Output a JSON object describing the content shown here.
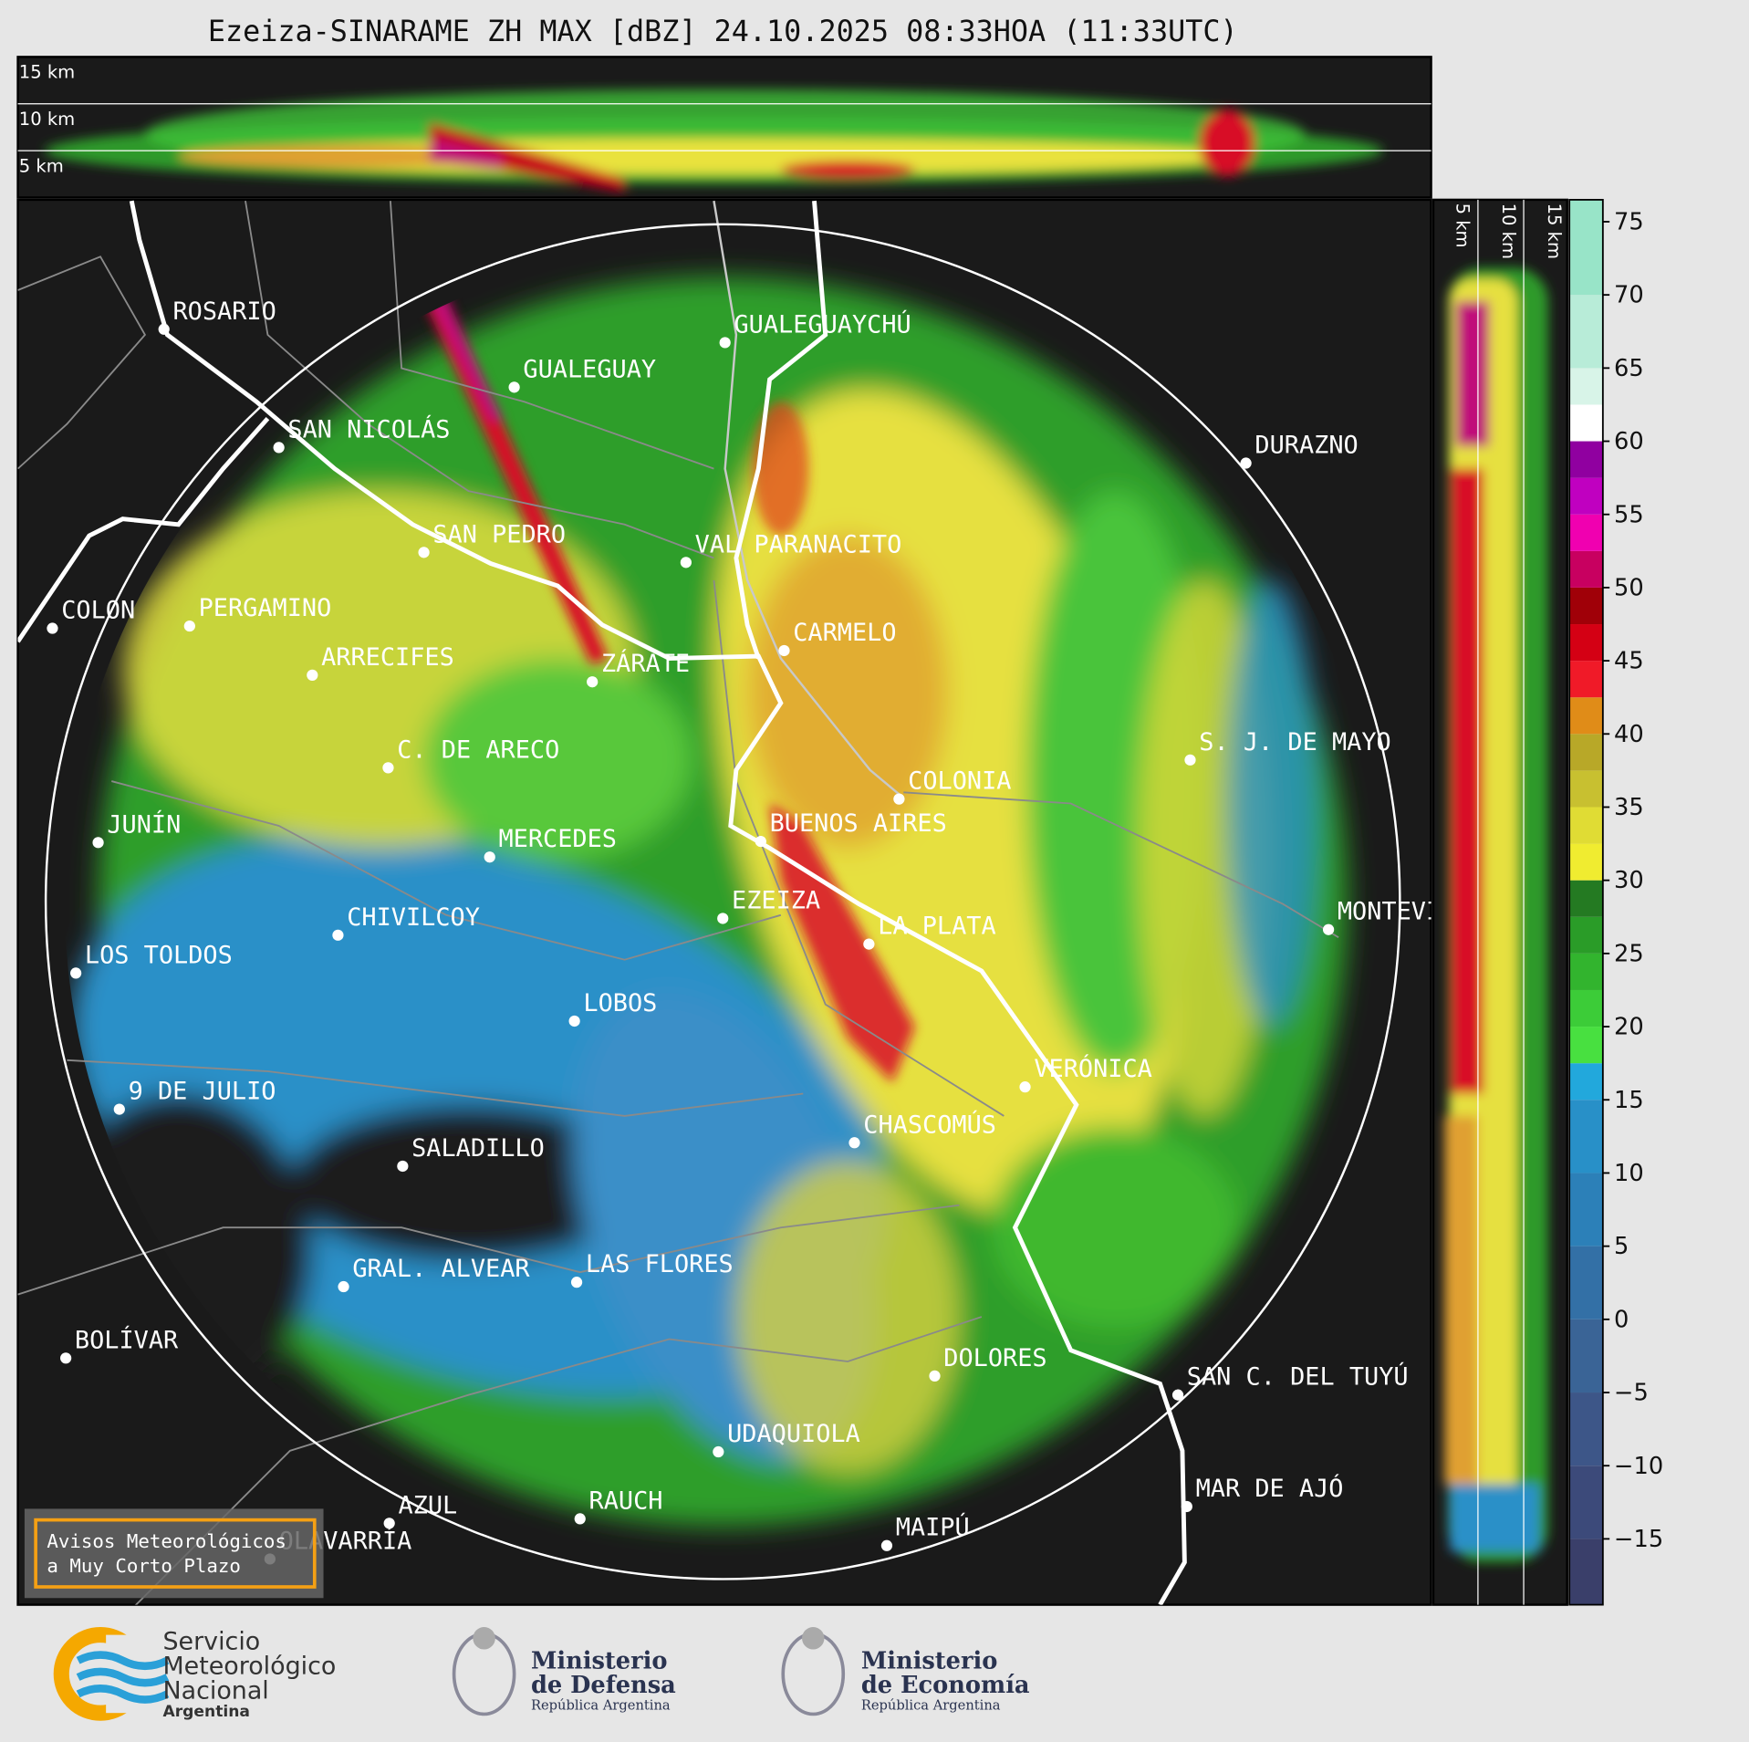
{
  "title": "Ezeiza-SINARAME ZH MAX [dBZ] 24.10.2025 08:33HOA (11:33UTC)",
  "height_panel": {
    "labels": [
      "15 km",
      "10 km",
      "5 km"
    ]
  },
  "side_panel": {
    "labels": [
      "5 km",
      "10 km",
      "15 km"
    ]
  },
  "cities": [
    "ROSARIO",
    "GUALEGUAYCHÚ",
    "GUALEGUAY",
    "SAN NICOLÁS",
    "DURAZNO",
    "SAN PEDRO",
    "VAL PARANACITO",
    "COLON",
    "PERGAMINO",
    "CARMELO",
    "ARRECIFES",
    "ZÁRATE",
    "S. J. DE MAYO",
    "C. DE ARECO",
    "COLONIA",
    "BUENOS AIRES",
    "JUNÍN",
    "MERCEDES",
    "MONTEVIDEO",
    "EZEIZA",
    "LA PLATA",
    "CHIVILCOY",
    "LOS TOLDOS",
    "LOBOS",
    "VERÓNICA",
    "9 DE JULIO",
    "CHASCOMÚS",
    "SALADILLO",
    "GRAL. ALVEAR",
    "LAS FLORES",
    "BOLÍVAR",
    "DOLORES",
    "SAN C. DEL TUYÚ",
    "UDAQUIOLA",
    "MAR DE AJÓ",
    "RAUCH",
    "AZUL",
    "OLAVARRÍA",
    "MAIPÚ"
  ],
  "colorbar": {
    "range": [
      -19.5,
      76.5
    ],
    "ticks": [
      75,
      70,
      65,
      60,
      55,
      50,
      45,
      40,
      35,
      30,
      25,
      20,
      15,
      10,
      5,
      0,
      {
        "value": -5,
        "label": "−5"
      },
      {
        "value": -10,
        "label": "−10"
      },
      {
        "value": -15,
        "label": "−15"
      }
    ]
  },
  "notice": [
    "Avisos Meteorológicos",
    "a Muy Corto Plazo"
  ],
  "logos": {
    "smn": [
      "Servicio",
      "Meteorológico",
      "Nacional",
      "Argentina"
    ],
    "defensa": [
      "Ministerio",
      "de Defensa",
      "República Argentina"
    ],
    "economia": [
      "Ministerio",
      "de Economía",
      "República Argentina"
    ]
  }
}
